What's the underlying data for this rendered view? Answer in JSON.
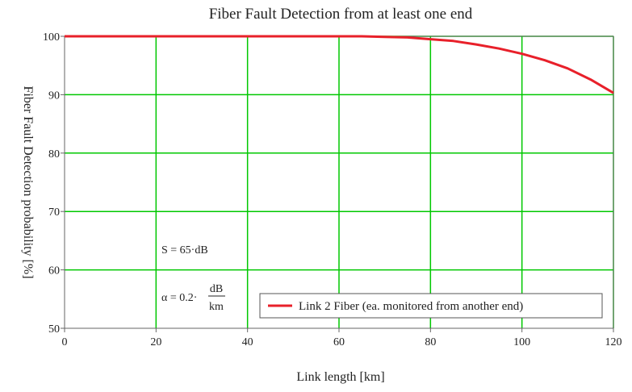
{
  "chart_data": {
    "type": "line",
    "title": "Fiber Fault Detection from at least one end",
    "xlabel": "Link length [km]",
    "ylabel": "Fiber Fault Detection probability [%]",
    "xlim": [
      0,
      120
    ],
    "ylim": [
      50,
      100
    ],
    "x_ticks": [
      0,
      20,
      40,
      60,
      80,
      100,
      120
    ],
    "y_ticks": [
      50,
      60,
      70,
      80,
      90,
      100
    ],
    "grid": true,
    "grid_color": "#00c800",
    "legend_position": "bottom-right",
    "series": [
      {
        "name": "Link 2 Fiber (ea. monitored from another end)",
        "color": "#e8202a",
        "x": [
          0,
          10,
          20,
          30,
          40,
          50,
          60,
          65,
          70,
          75,
          80,
          85,
          90,
          95,
          100,
          105,
          110,
          115,
          120
        ],
        "y": [
          100,
          100,
          100,
          100,
          100,
          100,
          100,
          100,
          99.9,
          99.8,
          99.5,
          99.2,
          98.6,
          97.9,
          97.0,
          95.9,
          94.5,
          92.6,
          90.3
        ]
      }
    ],
    "annotations": {
      "s_line": "S = 65·dB",
      "alpha_prefix": "α = 0.2·",
      "alpha_num": "dB",
      "alpha_den": "km"
    }
  }
}
